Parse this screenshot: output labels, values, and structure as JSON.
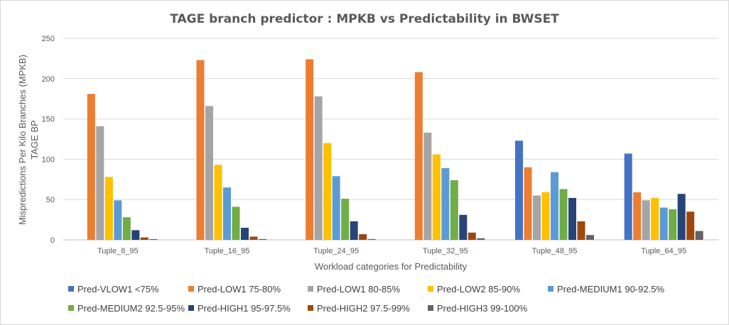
{
  "chart_data": {
    "type": "bar",
    "title": "TAGE branch predictor : MPKB vs Predictability  in BWSET",
    "xlabel": "Workload  categories for Predictability",
    "ylabel": "Mispredictions Per Kilo Branches (MPKB)",
    "ylabel2": "TAGE BP",
    "ylim": [
      0,
      250
    ],
    "yticks": [
      0,
      50,
      100,
      150,
      200,
      250
    ],
    "grid": true,
    "legend_position": "bottom",
    "categories": [
      "Tuple_8_95",
      "Tuple_16_95",
      "Tuple_24_95",
      "Tuple_32_95",
      "Tuple_48_95",
      "Tuple_64_95"
    ],
    "series": [
      {
        "name": "Pred-VLOW1 <75%",
        "color": "#4472c4",
        "values": [
          0,
          0,
          0,
          0,
          123,
          107
        ]
      },
      {
        "name": "Pred-LOW1 75-80%",
        "color": "#ed7d31",
        "values": [
          181,
          223,
          224,
          208,
          90,
          59
        ]
      },
      {
        "name": "Pred-LOW1 80-85%",
        "color": "#a5a5a5",
        "values": [
          141,
          166,
          178,
          133,
          55,
          49
        ]
      },
      {
        "name": "Pred-LOW2 85-90%",
        "color": "#ffc000",
        "values": [
          78,
          93,
          120,
          106,
          59,
          52
        ]
      },
      {
        "name": "Pred-MEDIUM1 90-92.5%",
        "color": "#5b9bd5",
        "values": [
          49,
          65,
          79,
          89,
          84,
          40
        ]
      },
      {
        "name": "Pred-MEDIUM2 92.5-95%",
        "color": "#70ad47",
        "values": [
          28,
          41,
          51,
          74,
          63,
          38
        ]
      },
      {
        "name": "Pred-HIGH1 95-97.5%",
        "color": "#264478",
        "values": [
          12,
          15,
          23,
          31,
          52,
          57
        ]
      },
      {
        "name": "Pred-HIGH2 97.5-99%",
        "color": "#9e480e",
        "values": [
          3,
          4,
          7,
          9,
          23,
          35
        ]
      },
      {
        "name": "Pred-HIGH3 99-100%",
        "color": "#636363",
        "values": [
          1,
          1,
          1,
          2,
          6,
          11
        ]
      }
    ]
  }
}
